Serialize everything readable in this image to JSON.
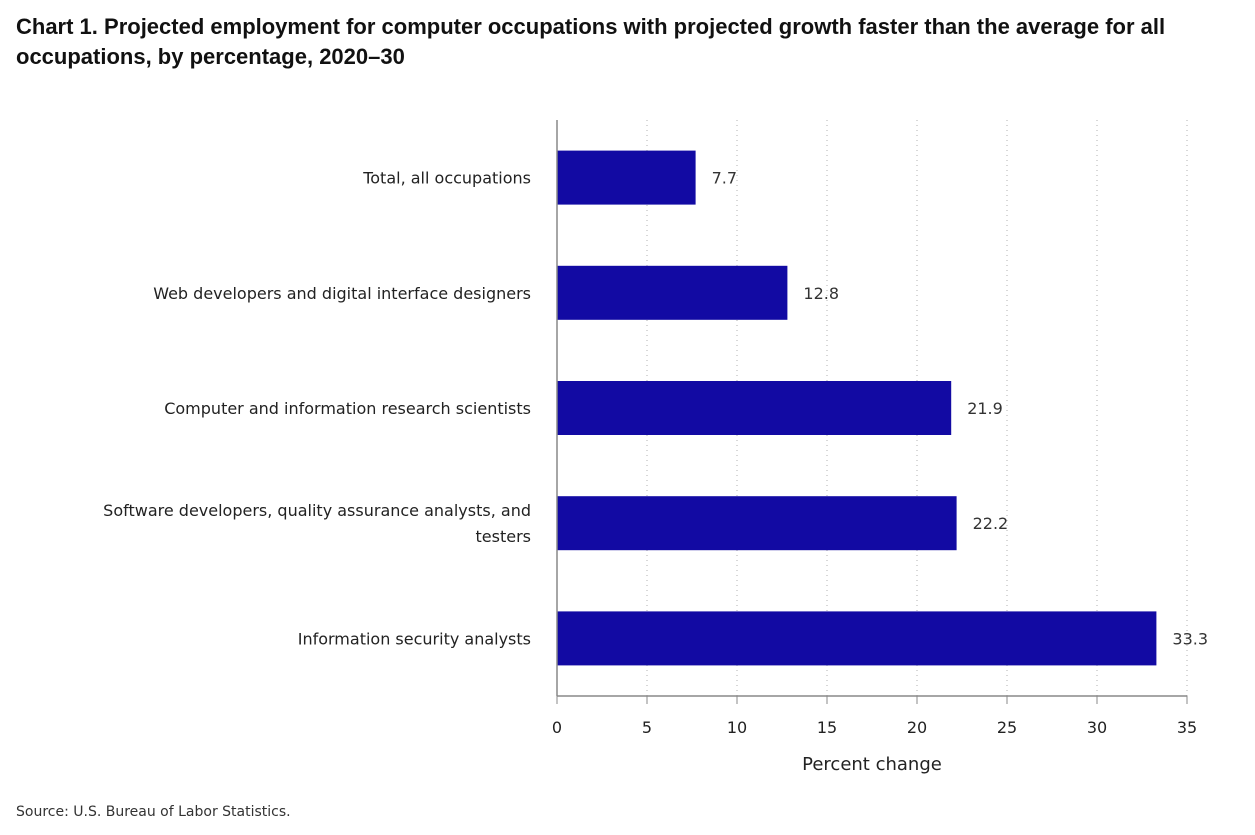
{
  "title": "Chart 1. Projected employment for computer occupations with projected growth faster than the average for all occupations, by percentage, 2020–30",
  "source": "Source: U.S. Bureau of Labor Statistics.",
  "colors": {
    "bar": "#120aa3",
    "axis": "#888888",
    "grid": "#b0b0b0",
    "label": "#222222",
    "value": "#333333"
  },
  "chart_data": {
    "type": "bar",
    "orientation": "horizontal",
    "title": "Chart 1. Projected employment for computer occupations with projected growth faster than the average for all occupations, by percentage, 2020–30",
    "xlabel": "Percent change",
    "ylabel": "",
    "xlim": [
      0,
      35
    ],
    "xticks": [
      0,
      5,
      10,
      15,
      20,
      25,
      30,
      35
    ],
    "grid": "vertical dotted",
    "categories": [
      [
        "Total, all occupations"
      ],
      [
        "Web developers and digital interface designers"
      ],
      [
        "Computer and information research scientists"
      ],
      [
        "Software developers, quality assurance analysts, and",
        "testers"
      ],
      [
        "Information security analysts"
      ]
    ],
    "values": [
      7.7,
      12.8,
      21.9,
      22.2,
      33.3
    ],
    "value_labels": [
      "7.7",
      "12.8",
      "21.9",
      "22.2",
      "33.3"
    ]
  }
}
